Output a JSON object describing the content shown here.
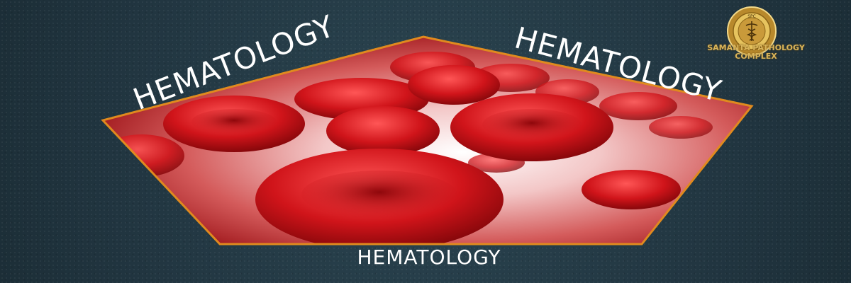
{
  "banner": {
    "heading_top_left": "HEMATOLOGY",
    "heading_top_right": "HEMATOLOGY",
    "heading_bottom": "HEMATOLOGY",
    "frame_color": "#e08a1e",
    "blood_color": "#d4141a"
  },
  "logo": {
    "seal_text": "SPC",
    "name_line1": "SAMANTA PATHOLOGY",
    "name_line2": "COMPLEX",
    "icon": "caduceus-icon",
    "gold_color": "#d8b45a"
  }
}
